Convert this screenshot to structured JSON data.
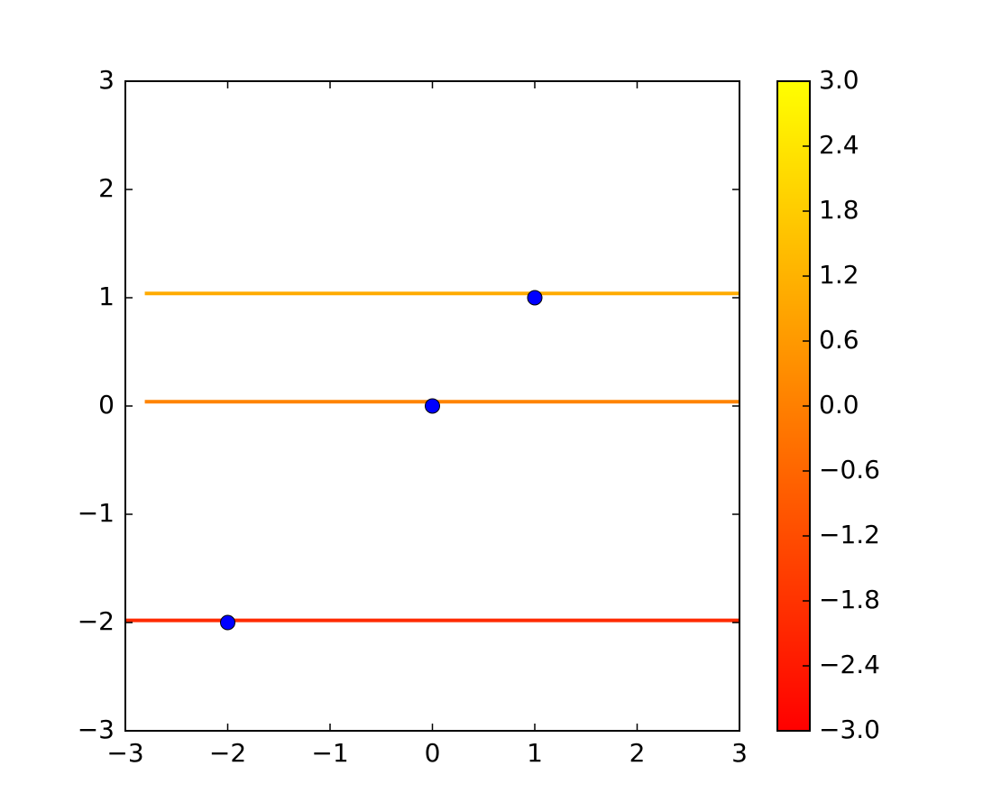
{
  "chart_data": [
    {
      "type": "line",
      "series": [
        {
          "color": "#ffab00",
          "x": [
            -2.81,
            3
          ],
          "values": [
            1.04,
            1.04
          ]
        },
        {
          "color": "#ff8400",
          "x": [
            -2.81,
            3
          ],
          "values": [
            0.04,
            0.04
          ]
        },
        {
          "color": "#ff2a00",
          "x": [
            -3,
            3
          ],
          "values": [
            -1.98,
            -1.98
          ]
        }
      ],
      "xlim": [
        -3,
        3
      ],
      "ylim": [
        -3,
        3
      ],
      "xticks": [
        {
          "value": -3,
          "label": "−3"
        },
        {
          "value": -2,
          "label": "−2"
        },
        {
          "value": -1,
          "label": "−1"
        },
        0,
        1,
        2,
        3
      ],
      "yticks": [
        {
          "value": -3,
          "label": "−3"
        },
        {
          "value": -2,
          "label": "−2"
        },
        {
          "value": -1,
          "label": "−1"
        },
        0,
        1,
        2,
        3
      ]
    },
    {
      "type": "scatter",
      "color": "#0000ff",
      "x": [
        -2,
        0,
        1
      ],
      "values": [
        -2,
        0,
        1
      ]
    },
    {
      "type": "colorbar",
      "colors": [
        "#ff0000",
        "#ffff00"
      ],
      "ylim": [
        -3,
        3
      ],
      "yticks": [
        {
          "value": -3,
          "label": "−3.0"
        },
        {
          "value": -2.4,
          "label": "−2.4"
        },
        {
          "value": -1.8,
          "label": "−1.8"
        },
        {
          "value": -1.2,
          "label": "−1.2"
        },
        {
          "value": -0.6,
          "label": "−0.6"
        },
        {
          "value": 0,
          "label": "0.0"
        },
        {
          "value": 0.6,
          "label": "0.6"
        },
        {
          "value": 1.2,
          "label": "1.2"
        },
        {
          "value": 1.8,
          "label": "1.8"
        },
        {
          "value": 2.4,
          "label": "2.4"
        },
        {
          "value": 3,
          "label": "3.0"
        }
      ]
    }
  ]
}
